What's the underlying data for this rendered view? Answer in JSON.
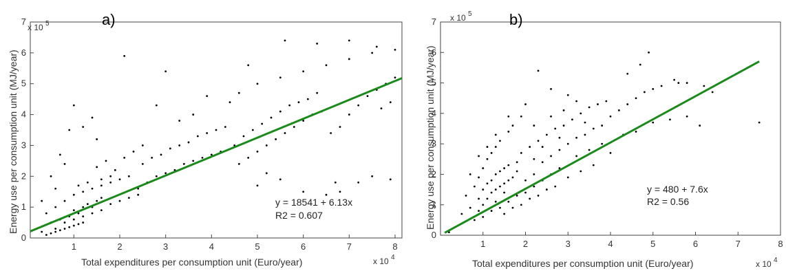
{
  "chart_data": [
    {
      "type": "scatter",
      "panel_label": "a)",
      "xlabel": "Total expenditures per consumption unit (Euro/year)",
      "ylabel": "Energy use per consumption unit (MJ/year)",
      "x_multiplier": "x 10",
      "x_multiplier_exp": "4",
      "y_multiplier": "x 10",
      "y_multiplier_exp": "5",
      "xlim": [
        0.05,
        8.15
      ],
      "ylim": [
        0,
        7
      ],
      "x_ticks": [
        "1",
        "2",
        "3",
        "4",
        "5",
        "6",
        "7",
        "8"
      ],
      "x_tick_values": [
        1,
        2,
        3,
        4,
        5,
        6,
        7,
        8
      ],
      "y_ticks": [
        "0",
        "1",
        "2",
        "3",
        "4",
        "5",
        "6",
        "7"
      ],
      "y_tick_values": [
        0,
        1,
        2,
        3,
        4,
        5,
        6,
        7
      ],
      "fit": {
        "intercept": 0.18541,
        "slope": 0.613,
        "x_range": [
          0.05,
          8.15
        ],
        "color": "#1a8a1a"
      },
      "equation": "y = 18541 + 6.13x",
      "r2": "R2 = 0.607",
      "equation_at": [
        5.7,
        1.1
      ],
      "point_color": "#000000",
      "points": [
        [
          0.5,
          0.5
        ],
        [
          0.7,
          0.6
        ],
        [
          0.9,
          0.7
        ],
        [
          1.0,
          0.9
        ],
        [
          1.1,
          0.8
        ],
        [
          1.2,
          1.0
        ],
        [
          1.3,
          1.1
        ],
        [
          1.4,
          1.0
        ],
        [
          1.5,
          1.2
        ],
        [
          1.6,
          1.3
        ],
        [
          0.6,
          0.3
        ],
        [
          0.8,
          0.5
        ],
        [
          1.0,
          0.6
        ],
        [
          1.2,
          0.7
        ],
        [
          1.4,
          0.8
        ],
        [
          1.6,
          0.9
        ],
        [
          1.8,
          1.1
        ],
        [
          2.0,
          1.2
        ],
        [
          2.2,
          1.3
        ],
        [
          2.4,
          1.4
        ],
        [
          0.4,
          0.8
        ],
        [
          0.6,
          1.0
        ],
        [
          0.8,
          1.2
        ],
        [
          1.0,
          1.4
        ],
        [
          1.2,
          1.5
        ],
        [
          1.4,
          1.6
        ],
        [
          1.6,
          1.7
        ],
        [
          1.8,
          1.8
        ],
        [
          2.0,
          1.9
        ],
        [
          2.2,
          2.0
        ],
        [
          2.4,
          1.6
        ],
        [
          2.6,
          1.8
        ],
        [
          2.8,
          2.0
        ],
        [
          3.0,
          2.1
        ],
        [
          3.2,
          2.2
        ],
        [
          3.4,
          2.4
        ],
        [
          3.6,
          2.5
        ],
        [
          3.8,
          2.6
        ],
        [
          4.0,
          2.7
        ],
        [
          4.2,
          2.8
        ],
        [
          2.5,
          2.4
        ],
        [
          2.7,
          2.6
        ],
        [
          2.9,
          2.7
        ],
        [
          3.1,
          2.9
        ],
        [
          3.3,
          3.0
        ],
        [
          3.5,
          3.1
        ],
        [
          3.7,
          3.3
        ],
        [
          3.9,
          3.4
        ],
        [
          4.1,
          3.5
        ],
        [
          4.3,
          3.6
        ],
        [
          1.5,
          2.3
        ],
        [
          1.7,
          2.5
        ],
        [
          1.9,
          2.2
        ],
        [
          2.1,
          2.6
        ],
        [
          2.3,
          2.8
        ],
        [
          2.5,
          3.0
        ],
        [
          1.8,
          2.0
        ],
        [
          1.6,
          1.9
        ],
        [
          1.3,
          1.8
        ],
        [
          1.1,
          1.7
        ],
        [
          4.5,
          3.0
        ],
        [
          4.7,
          3.3
        ],
        [
          4.9,
          3.5
        ],
        [
          5.1,
          3.7
        ],
        [
          5.3,
          3.9
        ],
        [
          5.5,
          4.1
        ],
        [
          5.7,
          4.3
        ],
        [
          5.9,
          4.4
        ],
        [
          6.1,
          4.5
        ],
        [
          6.3,
          4.7
        ],
        [
          4.6,
          2.4
        ],
        [
          4.8,
          2.6
        ],
        [
          5.0,
          2.8
        ],
        [
          5.2,
          3.0
        ],
        [
          5.4,
          3.2
        ],
        [
          5.6,
          3.4
        ],
        [
          5.8,
          3.6
        ],
        [
          6.0,
          3.8
        ],
        [
          6.2,
          4.0
        ],
        [
          6.4,
          4.1
        ],
        [
          4.4,
          4.4
        ],
        [
          4.6,
          4.7
        ],
        [
          5.0,
          5.0
        ],
        [
          5.5,
          5.2
        ],
        [
          6.0,
          5.4
        ],
        [
          6.5,
          5.6
        ],
        [
          7.0,
          5.8
        ],
        [
          7.5,
          6.0
        ],
        [
          3.6,
          4.0
        ],
        [
          3.3,
          3.8
        ],
        [
          6.6,
          3.4
        ],
        [
          6.8,
          3.6
        ],
        [
          7.0,
          4.0
        ],
        [
          7.2,
          4.3
        ],
        [
          7.4,
          4.6
        ],
        [
          7.6,
          4.8
        ],
        [
          7.8,
          5.0
        ],
        [
          8.0,
          5.2
        ],
        [
          7.9,
          4.4
        ],
        [
          7.7,
          4.2
        ],
        [
          2.1,
          5.9
        ],
        [
          3.0,
          5.4
        ],
        [
          5.6,
          6.4
        ],
        [
          6.3,
          6.3
        ],
        [
          7.0,
          6.4
        ],
        [
          7.6,
          6.2
        ],
        [
          8.0,
          6.1
        ],
        [
          4.8,
          5.6
        ],
        [
          3.9,
          4.6
        ],
        [
          2.8,
          4.3
        ],
        [
          1.0,
          4.3
        ],
        [
          1.4,
          3.9
        ],
        [
          0.9,
          3.5
        ],
        [
          1.2,
          3.6
        ],
        [
          1.5,
          3.2
        ],
        [
          0.7,
          2.7
        ],
        [
          0.8,
          2.4
        ],
        [
          0.5,
          2.0
        ],
        [
          0.6,
          1.6
        ],
        [
          0.3,
          1.2
        ],
        [
          0.3,
          0.2
        ],
        [
          0.4,
          0.1
        ],
        [
          0.5,
          0.15
        ],
        [
          0.6,
          0.2
        ],
        [
          0.7,
          0.25
        ],
        [
          0.8,
          0.3
        ],
        [
          0.9,
          0.35
        ],
        [
          1.0,
          0.4
        ],
        [
          1.1,
          0.45
        ],
        [
          1.2,
          0.5
        ],
        [
          6.5,
          1.4
        ],
        [
          6.8,
          1.5
        ],
        [
          7.2,
          1.8
        ],
        [
          7.5,
          2.0
        ],
        [
          7.9,
          1.9
        ],
        [
          6.7,
          1.8
        ],
        [
          6.0,
          1.5
        ],
        [
          5.5,
          1.9
        ],
        [
          5.2,
          2.1
        ],
        [
          5.0,
          1.7
        ]
      ]
    },
    {
      "type": "scatter",
      "panel_label": "b)",
      "xlabel": "Total expenditures per consumption unit (Euro/year)",
      "ylabel": "Energy use per consumption unit (MJ/year)",
      "x_multiplier": "x 10",
      "x_multiplier_exp": "4",
      "y_multiplier": "x 10",
      "y_multiplier_exp": "5",
      "xlim": [
        0,
        8
      ],
      "ylim": [
        0,
        7
      ],
      "x_ticks": [
        "1",
        "2",
        "3",
        "4",
        "5",
        "6",
        "7",
        "8"
      ],
      "x_tick_values": [
        1,
        2,
        3,
        4,
        5,
        6,
        7,
        8
      ],
      "y_ticks": [
        "0",
        "1",
        "2",
        "3",
        "4",
        "5",
        "6",
        "7"
      ],
      "y_tick_values": [
        0,
        1,
        2,
        3,
        4,
        5,
        6,
        7
      ],
      "fit": {
        "intercept": 0.0048,
        "slope": 0.76,
        "x_range": [
          0.1,
          7.5
        ],
        "color": "#1a8a1a"
      },
      "equation": "y = 480 + 7.6x",
      "r2": "R2 = 0.56",
      "equation_at": [
        5.2,
        1.8
      ],
      "point_color": "#000000",
      "points": [
        [
          0.8,
          0.5
        ],
        [
          0.9,
          0.8
        ],
        [
          1.0,
          1.0
        ],
        [
          1.1,
          1.2
        ],
        [
          1.2,
          1.4
        ],
        [
          1.3,
          1.5
        ],
        [
          1.4,
          1.6
        ],
        [
          1.5,
          1.7
        ],
        [
          1.6,
          1.8
        ],
        [
          1.7,
          1.9
        ],
        [
          0.7,
          0.9
        ],
        [
          0.9,
          1.2
        ],
        [
          1.0,
          1.5
        ],
        [
          1.1,
          1.7
        ],
        [
          1.2,
          1.8
        ],
        [
          1.3,
          2.0
        ],
        [
          1.4,
          2.1
        ],
        [
          1.5,
          2.2
        ],
        [
          1.6,
          2.3
        ],
        [
          1.8,
          2.4
        ],
        [
          0.8,
          1.6
        ],
        [
          0.9,
          1.9
        ],
        [
          1.0,
          2.2
        ],
        [
          1.1,
          2.5
        ],
        [
          1.2,
          2.7
        ],
        [
          1.3,
          2.9
        ],
        [
          1.4,
          3.1
        ],
        [
          1.6,
          3.4
        ],
        [
          1.7,
          3.6
        ],
        [
          1.9,
          3.9
        ],
        [
          1.0,
          0.6
        ],
        [
          1.2,
          0.8
        ],
        [
          1.4,
          0.9
        ],
        [
          1.6,
          1.1
        ],
        [
          1.8,
          1.3
        ],
        [
          2.0,
          1.4
        ],
        [
          2.2,
          1.6
        ],
        [
          2.4,
          1.8
        ],
        [
          2.6,
          2.0
        ],
        [
          2.8,
          2.2
        ],
        [
          1.9,
          2.7
        ],
        [
          2.1,
          2.9
        ],
        [
          2.3,
          3.1
        ],
        [
          2.5,
          3.3
        ],
        [
          2.7,
          3.5
        ],
        [
          2.9,
          3.6
        ],
        [
          3.1,
          3.8
        ],
        [
          3.3,
          4.0
        ],
        [
          3.5,
          4.2
        ],
        [
          3.7,
          4.3
        ],
        [
          2.0,
          1.8
        ],
        [
          2.2,
          2.0
        ],
        [
          2.4,
          2.4
        ],
        [
          2.6,
          2.6
        ],
        [
          2.8,
          2.8
        ],
        [
          3.0,
          3.0
        ],
        [
          3.2,
          3.2
        ],
        [
          3.4,
          3.3
        ],
        [
          3.6,
          3.5
        ],
        [
          3.8,
          3.6
        ],
        [
          4.0,
          3.9
        ],
        [
          4.2,
          4.1
        ],
        [
          4.4,
          4.3
        ],
        [
          4.6,
          4.5
        ],
        [
          4.8,
          4.7
        ],
        [
          5.0,
          4.8
        ],
        [
          5.2,
          4.9
        ],
        [
          5.5,
          5.1
        ],
        [
          5.8,
          5.0
        ],
        [
          6.2,
          4.9
        ],
        [
          3.2,
          2.6
        ],
        [
          3.5,
          2.8
        ],
        [
          3.8,
          3.0
        ],
        [
          4.0,
          2.7
        ],
        [
          4.3,
          3.3
        ],
        [
          4.6,
          3.4
        ],
        [
          5.0,
          3.7
        ],
        [
          5.4,
          3.8
        ],
        [
          5.8,
          3.9
        ],
        [
          6.1,
          3.6
        ],
        [
          2.3,
          5.4
        ],
        [
          2.6,
          4.8
        ],
        [
          3.0,
          4.6
        ],
        [
          4.4,
          5.3
        ],
        [
          4.9,
          6.0
        ],
        [
          5.6,
          5.0
        ],
        [
          6.4,
          4.7
        ],
        [
          7.5,
          3.7
        ],
        [
          4.7,
          5.6
        ],
        [
          3.9,
          4.4
        ],
        [
          1.3,
          3.3
        ],
        [
          1.6,
          3.9
        ],
        [
          2.0,
          4.3
        ],
        [
          2.2,
          3.6
        ],
        [
          1.1,
          2.9
        ],
        [
          0.9,
          2.6
        ],
        [
          0.7,
          2.0
        ],
        [
          0.6,
          1.3
        ],
        [
          0.5,
          0.7
        ],
        [
          0.2,
          0.1
        ],
        [
          1.5,
          0.7
        ],
        [
          1.7,
          0.9
        ],
        [
          1.9,
          1.0
        ],
        [
          2.1,
          1.2
        ],
        [
          2.3,
          1.3
        ],
        [
          2.5,
          1.5
        ],
        [
          2.7,
          1.6
        ],
        [
          3.0,
          1.9
        ],
        [
          3.3,
          2.1
        ],
        [
          3.6,
          2.3
        ],
        [
          2.6,
          3.9
        ],
        [
          2.9,
          4.1
        ],
        [
          3.2,
          4.4
        ],
        [
          3.4,
          3.7
        ],
        [
          2.8,
          3.2
        ],
        [
          2.4,
          2.9
        ],
        [
          2.2,
          2.5
        ],
        [
          1.8,
          2.1
        ],
        [
          1.5,
          1.4
        ],
        [
          1.3,
          1.1
        ]
      ]
    }
  ]
}
